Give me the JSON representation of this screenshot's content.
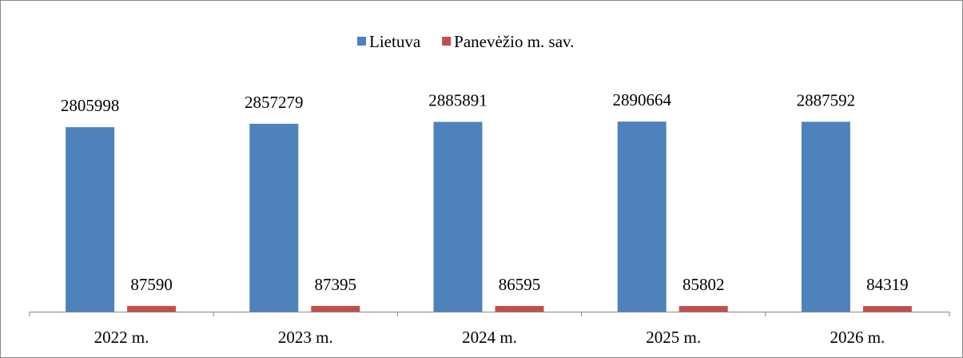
{
  "chart_data": {
    "type": "bar",
    "categories": [
      "2022 m.",
      "2023 m.",
      "2024 m.",
      "2025 m.",
      "2026 m."
    ],
    "series": [
      {
        "name": "Lietuva",
        "color": "#4f81bd",
        "values": [
          2805998,
          2857279,
          2885891,
          2890664,
          2887592
        ]
      },
      {
        "name": "Panevėžio m. sav.",
        "color": "#c0504d",
        "values": [
          87590,
          87395,
          86595,
          85802,
          84319
        ]
      }
    ],
    "ylim": [
      0,
      3500000
    ],
    "legend": "top"
  }
}
